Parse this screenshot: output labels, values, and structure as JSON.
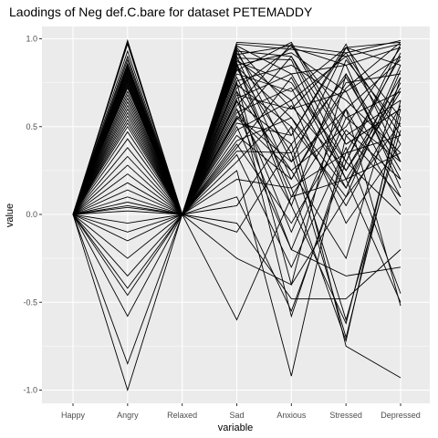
{
  "chart_data": {
    "type": "line",
    "title": "Laodings of Neg def.C.bare for dataset PETEMADDY",
    "xlabel": "variable",
    "ylabel": "value",
    "categories": [
      "Happy",
      "Angry",
      "Relaxed",
      "Sad",
      "Anxious",
      "Stressed",
      "Depressed"
    ],
    "yticks": [
      "-1.0",
      "-0.5",
      "0.0",
      "0.5",
      "1.0"
    ],
    "ytick_values": [
      -1.0,
      -0.5,
      0.0,
      0.5,
      1.0
    ],
    "ylim": [
      -1.05,
      1.05
    ],
    "grid": true,
    "panel_background": "#ebebeb",
    "grid_color": "#ffffff",
    "line_color": "#000000",
    "series": [
      {
        "values": [
          0,
          0.99,
          0,
          0.98,
          0.96,
          0.92,
          0.99
        ]
      },
      {
        "values": [
          0,
          0.98,
          0,
          0.97,
          0.94,
          0.9,
          0.97
        ]
      },
      {
        "values": [
          0,
          0.97,
          0,
          0.96,
          0.8,
          0.85,
          0.95
        ]
      },
      {
        "values": [
          0,
          0.93,
          0,
          0.95,
          0.6,
          0.7,
          0.9
        ]
      },
      {
        "values": [
          0,
          0.9,
          0,
          0.94,
          0.3,
          0.95,
          0.85
        ]
      },
      {
        "values": [
          0,
          0.88,
          0,
          0.93,
          0.9,
          0.4,
          0.6
        ]
      },
      {
        "values": [
          0,
          0.86,
          0,
          0.92,
          0.45,
          0.95,
          0.98
        ]
      },
      {
        "values": [
          0,
          0.85,
          0,
          0.91,
          0.96,
          0.55,
          0.3
        ]
      },
      {
        "values": [
          0,
          0.84,
          0,
          0.9,
          0.2,
          0.75,
          0.8
        ]
      },
      {
        "values": [
          0,
          0.83,
          0,
          0.89,
          0.88,
          0.2,
          0.7
        ]
      },
      {
        "values": [
          0,
          0.82,
          0,
          0.88,
          0.65,
          0.9,
          0.4
        ]
      },
      {
        "values": [
          0,
          0.81,
          0,
          0.87,
          0.75,
          0.3,
          0.97
        ]
      },
      {
        "values": [
          0,
          0.8,
          0,
          0.86,
          0.1,
          0.6,
          0.88
        ]
      },
      {
        "values": [
          0,
          0.79,
          0,
          0.85,
          0.92,
          0.7,
          0.1
        ]
      },
      {
        "values": [
          0,
          0.78,
          0,
          0.84,
          0.55,
          0.15,
          0.75
        ]
      },
      {
        "values": [
          0,
          0.77,
          0,
          0.83,
          0.35,
          0.8,
          0.2
        ]
      },
      {
        "values": [
          0,
          0.76,
          0,
          0.82,
          0.98,
          0.45,
          0.65
        ]
      },
      {
        "values": [
          0,
          0.75,
          0,
          0.8,
          0.7,
          0.95,
          0.55
        ]
      },
      {
        "values": [
          0,
          0.74,
          0,
          0.78,
          0.15,
          0.35,
          0.9
        ]
      },
      {
        "values": [
          0,
          0.73,
          0,
          0.76,
          0.85,
          0.65,
          0.35
        ]
      },
      {
        "values": [
          0,
          0.72,
          0,
          0.74,
          0.5,
          0.1,
          0.82
        ]
      },
      {
        "values": [
          0,
          0.7,
          0,
          0.72,
          0.95,
          0.85,
          0.15
        ]
      },
      {
        "values": [
          0,
          0.68,
          0,
          0.7,
          0.25,
          0.5,
          0.95
        ]
      },
      {
        "values": [
          0,
          0.66,
          0,
          0.68,
          0.6,
          0.92,
          0.45
        ]
      },
      {
        "values": [
          0,
          0.64,
          0,
          0.66,
          0.8,
          0.25,
          0.72
        ]
      },
      {
        "values": [
          0,
          0.62,
          0,
          0.64,
          0.4,
          0.78,
          0.25
        ]
      },
      {
        "values": [
          0,
          0.6,
          0,
          0.62,
          0.97,
          0.4,
          0.6
        ]
      },
      {
        "values": [
          0,
          0.58,
          0,
          0.6,
          0.05,
          0.88,
          0.5
        ]
      },
      {
        "values": [
          0,
          0.56,
          0,
          0.58,
          0.72,
          0.15,
          0.85
        ]
      },
      {
        "values": [
          0,
          0.54,
          0,
          0.56,
          0.3,
          0.6,
          0.05
        ]
      },
      {
        "values": [
          0,
          0.52,
          0,
          0.54,
          0.9,
          0.3,
          0.92
        ]
      },
      {
        "values": [
          0,
          0.5,
          0,
          0.52,
          0.45,
          0.97,
          0.3
        ]
      },
      {
        "values": [
          0,
          0.47,
          0,
          0.5,
          -0.2,
          0.55,
          0.7
        ]
      },
      {
        "values": [
          0,
          0.43,
          0,
          0.48,
          0.65,
          -0.05,
          0.4
        ]
      },
      {
        "values": [
          0,
          0.38,
          0,
          0.45,
          0.2,
          0.72,
          0.98
        ]
      },
      {
        "values": [
          0,
          0.33,
          0,
          0.42,
          0.55,
          0.05,
          0.62
        ]
      },
      {
        "values": [
          0,
          0.28,
          0,
          0.4,
          -0.05,
          0.48,
          0.2
        ]
      },
      {
        "values": [
          0,
          0.23,
          0,
          0.38,
          0.78,
          0.2,
          0.35
        ]
      },
      {
        "values": [
          0,
          0.18,
          0,
          0.36,
          0.35,
          -0.7,
          0.55
        ]
      },
      {
        "values": [
          0,
          0.14,
          0,
          0.34,
          -0.3,
          0.38,
          -0.45
        ]
      },
      {
        "values": [
          0,
          0.1,
          0,
          0.3,
          0.62,
          0.25,
          0.78
        ]
      },
      {
        "values": [
          0,
          0.07,
          0,
          0.25,
          -0.92,
          0.45,
          0.1
        ]
      },
      {
        "values": [
          0,
          0.05,
          0,
          0.2,
          0.15,
          -0.72,
          0.65
        ]
      },
      {
        "values": [
          0,
          0.04,
          0,
          0.1,
          -0.55,
          0.3,
          0.0
        ]
      },
      {
        "values": [
          0,
          0.02,
          0,
          -0.1,
          0.4,
          -0.6,
          0.48
        ]
      },
      {
        "values": [
          0,
          -0.05,
          0,
          -0.05,
          -0.48,
          -0.48,
          -0.2
        ]
      },
      {
        "values": [
          0,
          -0.1,
          0,
          0.05,
          0.5,
          -0.75,
          -0.93
        ]
      },
      {
        "values": [
          0,
          -0.15,
          0,
          -0.6,
          0.1,
          0.2,
          -0.5
        ]
      },
      {
        "values": [
          0,
          -0.25,
          0,
          -0.25,
          -0.4,
          0.8,
          0.3
        ]
      },
      {
        "values": [
          0,
          -0.35,
          0,
          0.6,
          -0.2,
          -0.35,
          -0.3
        ]
      },
      {
        "values": [
          0,
          -0.42,
          0,
          0.55,
          0.25,
          -0.25,
          0.78
        ]
      },
      {
        "values": [
          0,
          -0.46,
          0,
          0.75,
          -0.4,
          0.1,
          0.52
        ]
      },
      {
        "values": [
          0,
          -0.58,
          0,
          0.65,
          -0.1,
          0.6,
          -0.52
        ]
      },
      {
        "values": [
          0,
          -0.85,
          0,
          0.85,
          0.05,
          -0.62,
          0.6
        ]
      },
      {
        "values": [
          0,
          -1.0,
          0,
          0.7,
          -0.58,
          0.35,
          0.45
        ]
      }
    ]
  }
}
